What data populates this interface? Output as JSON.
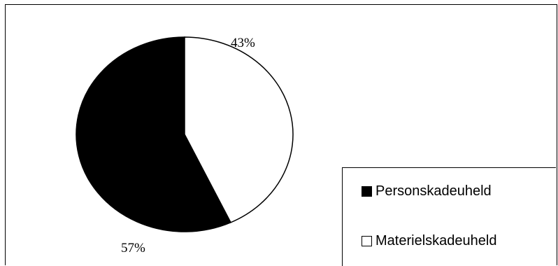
{
  "chart_data": {
    "type": "pie",
    "title": "",
    "series": [
      {
        "name": "Personskadeuheld",
        "value": 57,
        "label": "57%",
        "color": "#000000"
      },
      {
        "name": "Materielskadeuheld",
        "value": 43,
        "label": "43%",
        "color": "#ffffff"
      }
    ],
    "legend_position": "bottom-right"
  }
}
